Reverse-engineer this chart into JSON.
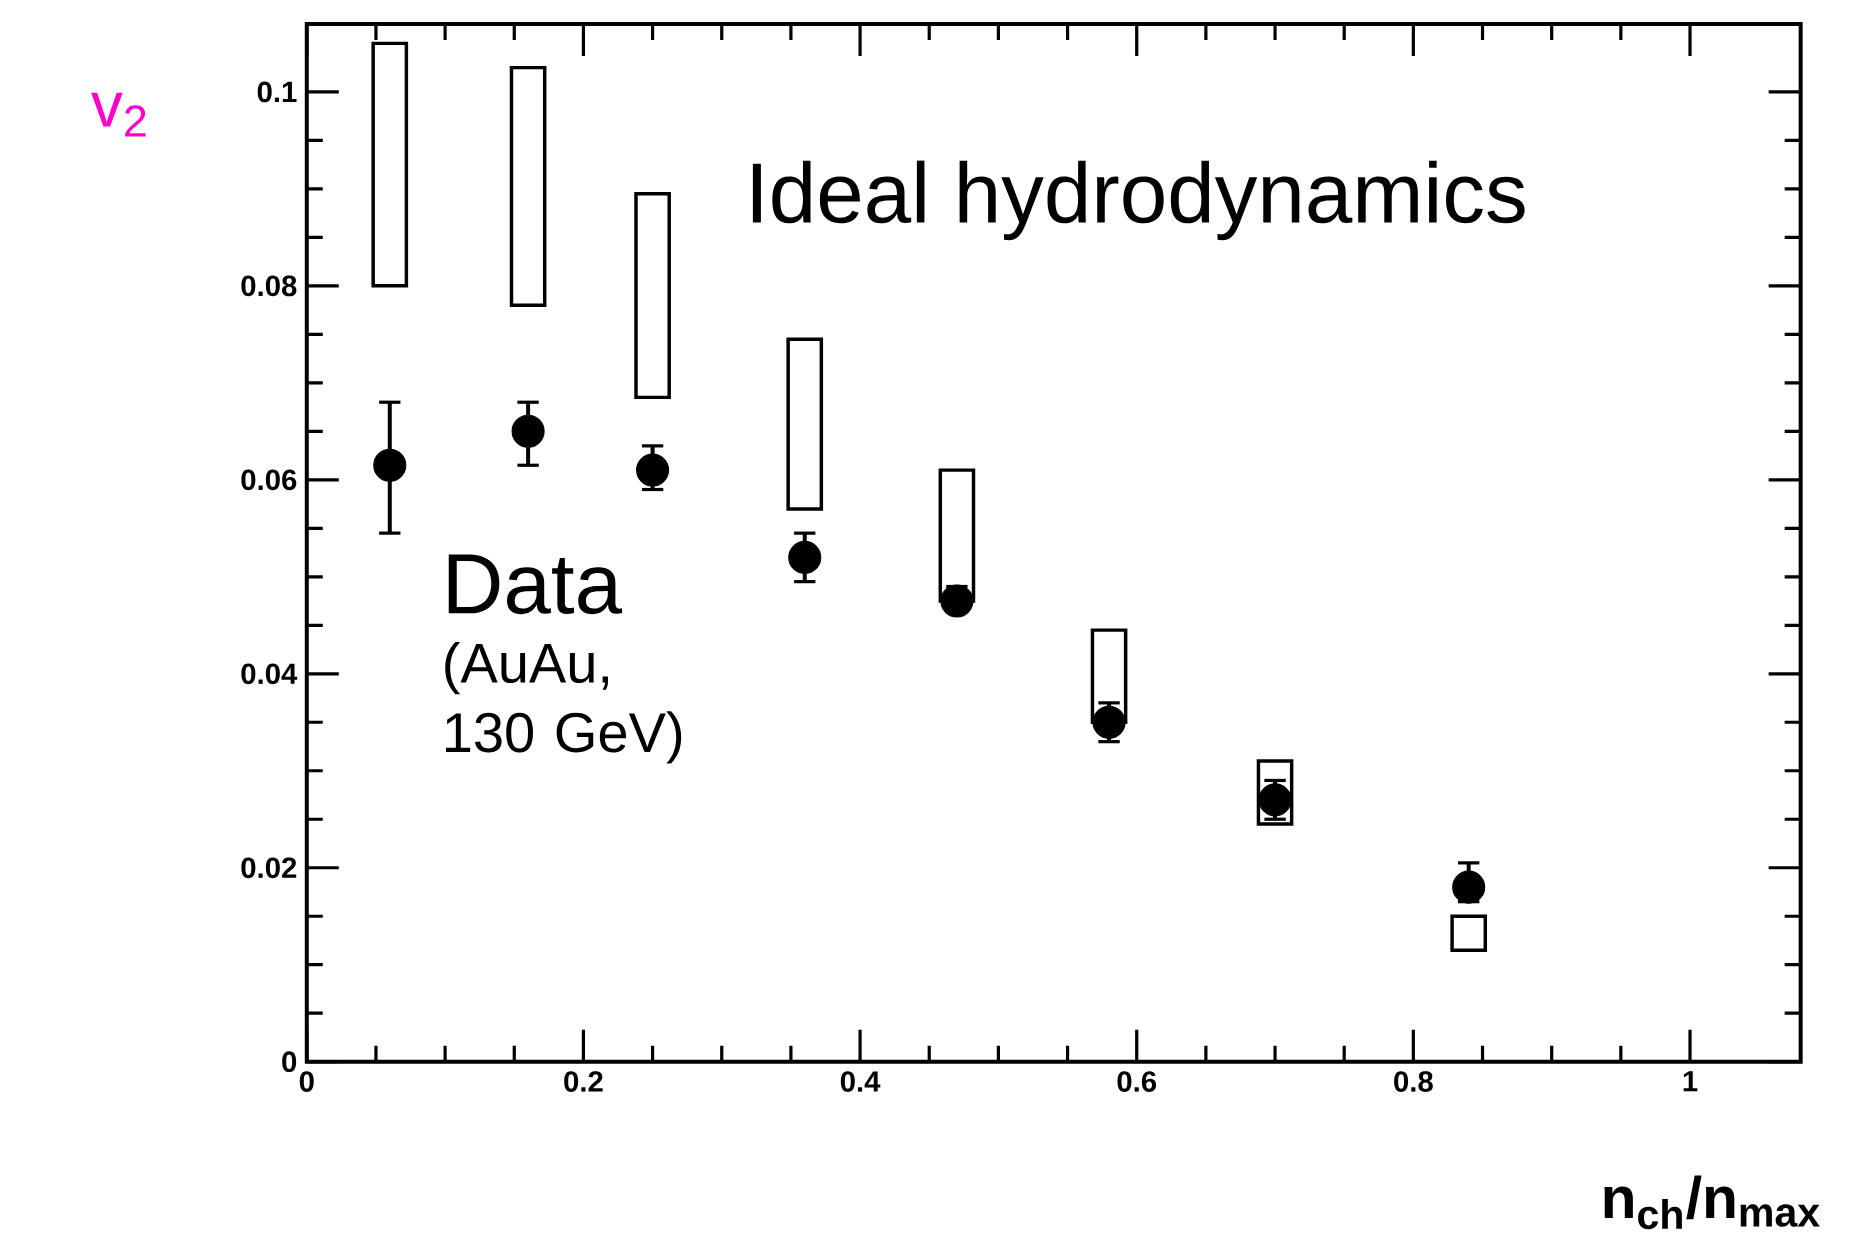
{
  "chart_data": {
    "type": "scatter",
    "xlabel": "**n$_{ch}$/n$_{max}$**",
    "ylabel": "v$_{2}$",
    "xlim": [
      0,
      1.08
    ],
    "ylim": [
      0,
      0.107
    ],
    "xticks": [
      0,
      0.2,
      0.4,
      0.6,
      0.8,
      1
    ],
    "yticks": [
      0,
      0.02,
      0.04,
      0.06,
      0.08,
      0.1
    ],
    "annotations": [
      "(AuAu, 130 GeV)"
    ],
    "series": [
      {
        "name": "Ideal hydrodynamics",
        "type": "bar",
        "color": "#000000",
        "x": [
          0.06,
          0.16,
          0.25,
          0.36,
          0.47,
          0.58,
          0.7,
          0.84
        ],
        "base": [
          0.08,
          0.078,
          0.0685,
          0.057,
          0.0475,
          0.035,
          0.0245,
          0.0115
        ],
        "values": [
          0.025,
          0.0245,
          0.021,
          0.0175,
          0.0135,
          0.0095,
          0.0065,
          0.0035
        ]
      },
      {
        "name": "Data",
        "color": "#000000",
        "x": [
          0.06,
          0.16,
          0.25,
          0.36,
          0.47,
          0.58,
          0.7,
          0.84
        ],
        "values": [
          0.0615,
          0.065,
          0.061,
          0.052,
          0.0475,
          0.035,
          0.027,
          0.018
        ],
        "errors": [
          [
            0.0545,
            0.068
          ],
          [
            0.0615,
            0.068
          ],
          [
            0.059,
            0.0635
          ],
          [
            0.0495,
            0.0545
          ],
          [
            0.0465,
            0.049
          ],
          [
            0.033,
            0.037
          ],
          [
            0.025,
            0.029
          ],
          [
            0.0165,
            0.0205
          ]
        ]
      }
    ]
  }
}
